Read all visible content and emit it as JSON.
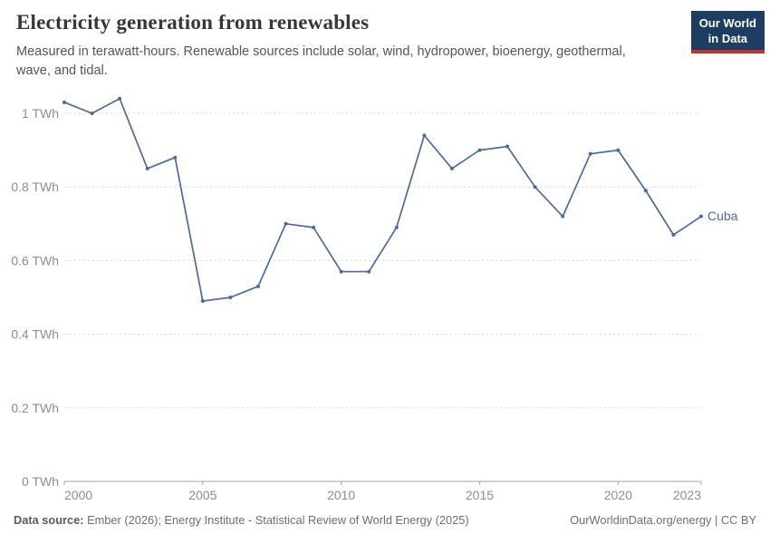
{
  "header": {
    "title": "Electricity generation from renewables",
    "subtitle": "Measured in terawatt-hours. Renewable sources include solar, wind, hydropower, bioenergy, geothermal, wave, and tidal.",
    "logo": {
      "line1": "Our World",
      "line2": "in Data",
      "bg_color": "#1d3d63",
      "accent_color": "#c0342c"
    }
  },
  "chart_data": {
    "type": "line",
    "title": "Electricity generation from renewables",
    "xlabel": "",
    "ylabel": "TWh",
    "xlim": [
      2000,
      2023
    ],
    "ylim": [
      0,
      1
    ],
    "grid": "horizontal-dashed",
    "legend_position": "end-of-line-label",
    "x": [
      2000,
      2001,
      2002,
      2003,
      2004,
      2005,
      2006,
      2007,
      2008,
      2009,
      2010,
      2011,
      2012,
      2013,
      2014,
      2015,
      2016,
      2017,
      2018,
      2019,
      2020,
      2021,
      2022,
      2023
    ],
    "series": [
      {
        "name": "Cuba",
        "color": "#4C6A9C",
        "values": [
          1.03,
          1.0,
          1.04,
          0.85,
          0.88,
          0.49,
          0.5,
          0.53,
          0.7,
          0.69,
          0.57,
          0.57,
          0.69,
          0.94,
          0.85,
          0.9,
          0.91,
          0.8,
          0.72,
          0.89,
          0.9,
          0.79,
          0.67,
          0.72
        ]
      }
    ],
    "x_ticks": [
      {
        "value": 2000,
        "label": "2000"
      },
      {
        "value": 2005,
        "label": "2005"
      },
      {
        "value": 2010,
        "label": "2010"
      },
      {
        "value": 2015,
        "label": "2015"
      },
      {
        "value": 2020,
        "label": "2020"
      },
      {
        "value": 2023,
        "label": "2023"
      }
    ],
    "y_ticks": [
      {
        "value": 0,
        "label": "0 TWh"
      },
      {
        "value": 0.2,
        "label": "0.2 TWh"
      },
      {
        "value": 0.4,
        "label": "0.4 TWh"
      },
      {
        "value": 0.6,
        "label": "0.6 TWh"
      },
      {
        "value": 0.8,
        "label": "0.8 TWh"
      },
      {
        "value": 1,
        "label": "1 TWh"
      }
    ],
    "colors": {
      "gridline": "#d9d9d9",
      "axis": "#a3a3a3",
      "tick_label": "#8e8e8e"
    }
  },
  "footer": {
    "datasource_label": "Data source:",
    "datasource_text": " Ember (2026); Energy Institute - Statistical Review of World Energy (2025)",
    "credit": "OurWorldinData.org/energy | CC BY"
  }
}
